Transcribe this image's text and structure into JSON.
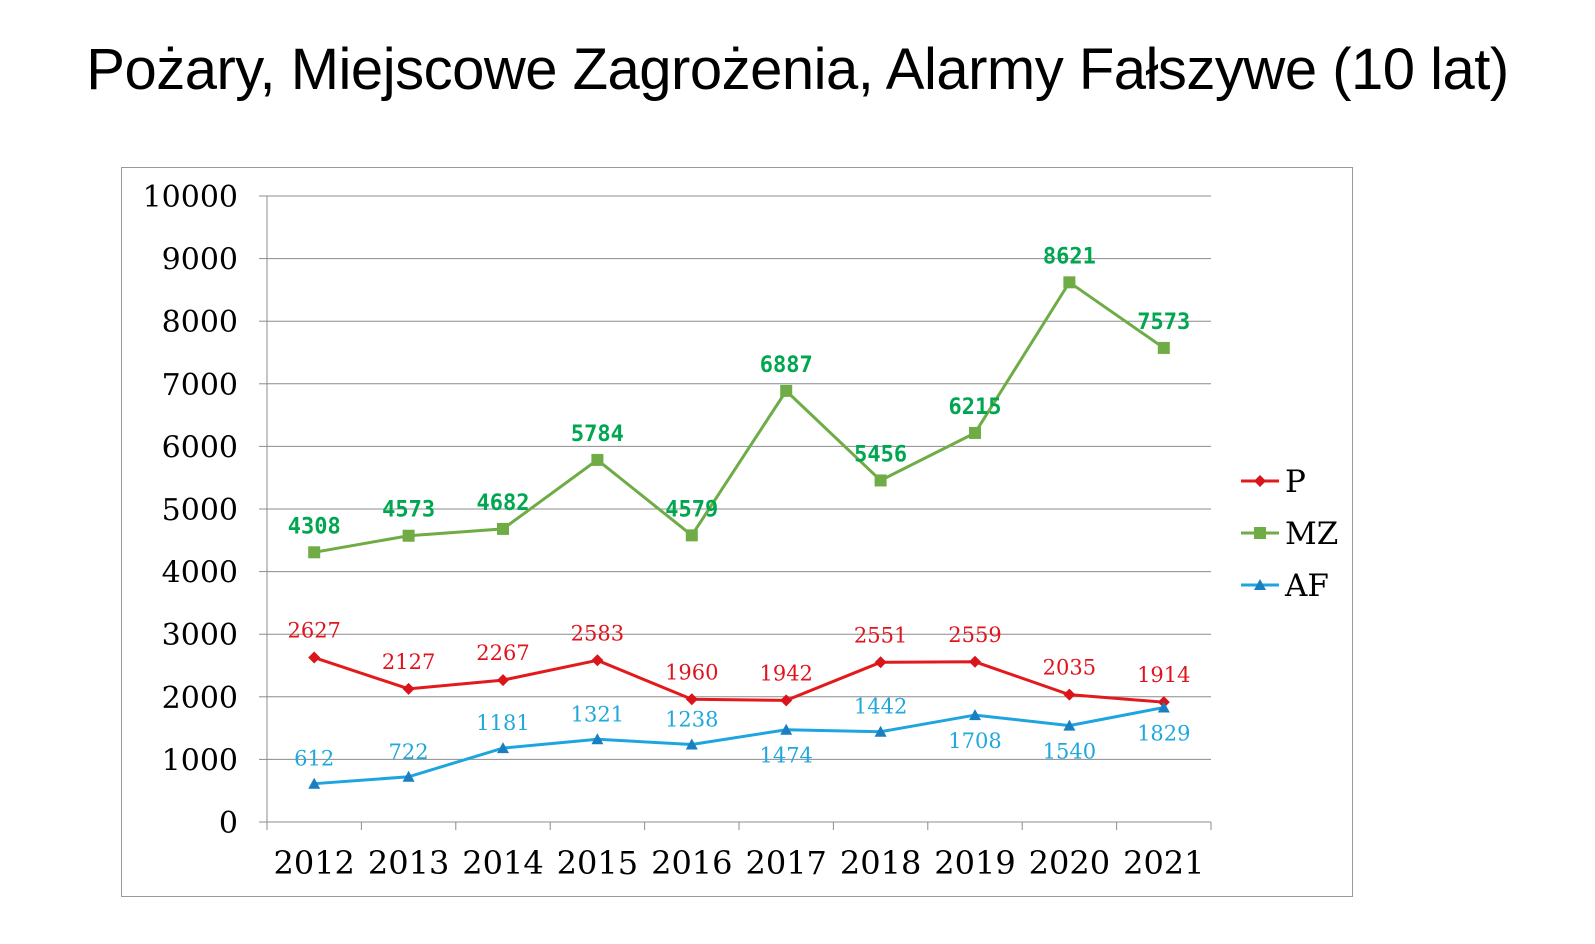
{
  "chart_data": {
    "type": "line",
    "title": "Pożary, Miejscowe Zagrożenia, Alarmy Fałszywe (10 lat)",
    "categories": [
      "2012",
      "2013",
      "2014",
      "2015",
      "2016",
      "2017",
      "2018",
      "2019",
      "2020",
      "2021"
    ],
    "ylim": [
      0,
      10000
    ],
    "yticks": [
      "0",
      "1000",
      "2000",
      "3000",
      "4000",
      "5000",
      "6000",
      "7000",
      "8000",
      "9000",
      "10000"
    ],
    "grid": true,
    "legend": "right",
    "series": [
      {
        "name": "P",
        "values": [
          2627,
          2127,
          2267,
          2583,
          1960,
          1942,
          2551,
          2559,
          2035,
          1914
        ],
        "color": "#e31a1c",
        "label_color": "#e0141e",
        "marker": "diamond"
      },
      {
        "name": "MZ",
        "values": [
          4308,
          4573,
          4682,
          5784,
          4579,
          6887,
          5456,
          6215,
          8621,
          7573
        ],
        "color": "#6fac46",
        "label_color": "#00a650",
        "marker": "square"
      },
      {
        "name": "AF",
        "values": [
          612,
          722,
          1181,
          1321,
          1238,
          1474,
          1442,
          1708,
          1540,
          1829
        ],
        "color": "#1ea5e0",
        "label_color": "#20a8dc",
        "marker": "triangle"
      }
    ]
  }
}
